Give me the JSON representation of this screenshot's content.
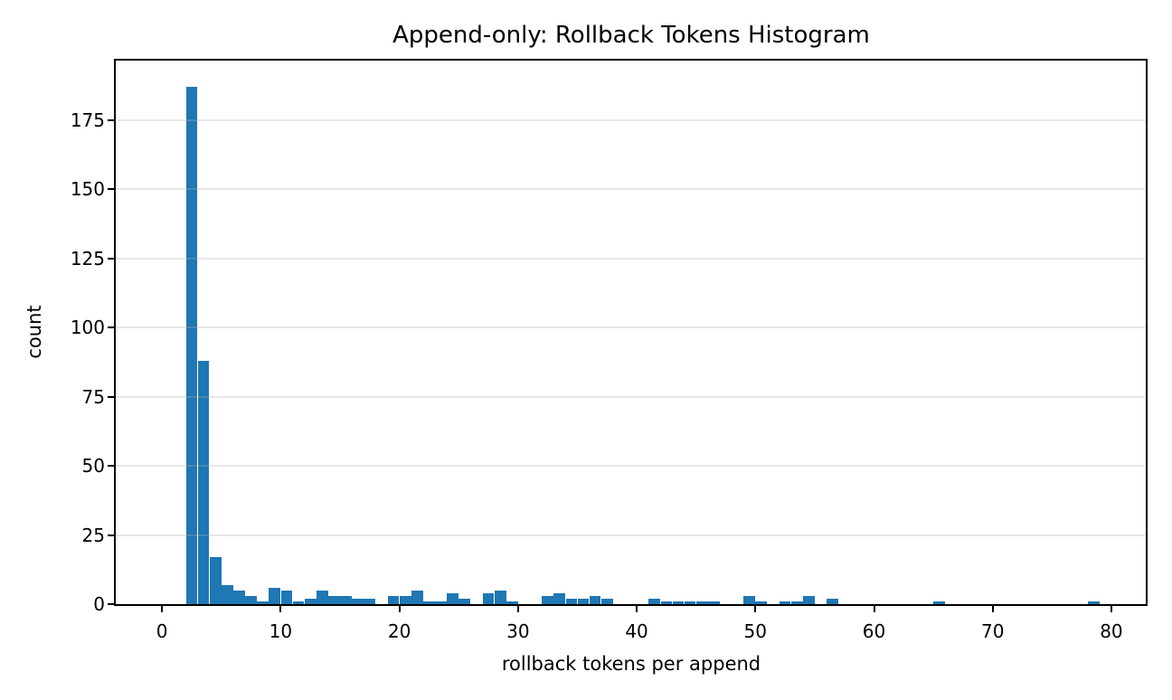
{
  "chart_data": {
    "type": "bar",
    "subtype": "histogram",
    "title": "Append-only: Rollback Tokens Histogram",
    "xlabel": "rollback tokens per append",
    "ylabel": "count",
    "xlim": [
      -3.9,
      82.9
    ],
    "ylim": [
      0,
      196.5
    ],
    "xticks": [
      0,
      10,
      20,
      30,
      40,
      50,
      60,
      70,
      80
    ],
    "yticks": [
      0,
      25,
      50,
      75,
      100,
      125,
      150,
      175
    ],
    "grid": "horizontal",
    "grid_above_bars": true,
    "bar_color": "#1f77b4",
    "grid_color": "#b0b0b0",
    "grid_alpha": 0.3,
    "bin_width": 1.03,
    "bar_visual_width": 0.97,
    "x": [
      2.5,
      3.5,
      4.5,
      5.5,
      6.5,
      7.5,
      8.5,
      9.5,
      10.5,
      11.5,
      12.5,
      13.5,
      14.5,
      15.5,
      16.5,
      17.5,
      19.5,
      20.5,
      21.5,
      22.5,
      23.5,
      24.5,
      25.5,
      27.5,
      28.5,
      29.5,
      32.5,
      33.5,
      34.5,
      35.5,
      36.5,
      37.5,
      41.5,
      42.5,
      43.5,
      44.5,
      45.5,
      46.5,
      49.5,
      50.5,
      52.5,
      53.5,
      54.5,
      56.5,
      65.5,
      78.5
    ],
    "counts": [
      187,
      88,
      17,
      7,
      5,
      3,
      1,
      6,
      5,
      1,
      2,
      5,
      3,
      3,
      2,
      2,
      3,
      3,
      5,
      1,
      1,
      4,
      2,
      4,
      5,
      1,
      3,
      4,
      2,
      2,
      3,
      2,
      2,
      1,
      1,
      1,
      1,
      1,
      3,
      1,
      1,
      1,
      3,
      2,
      1,
      1
    ]
  }
}
